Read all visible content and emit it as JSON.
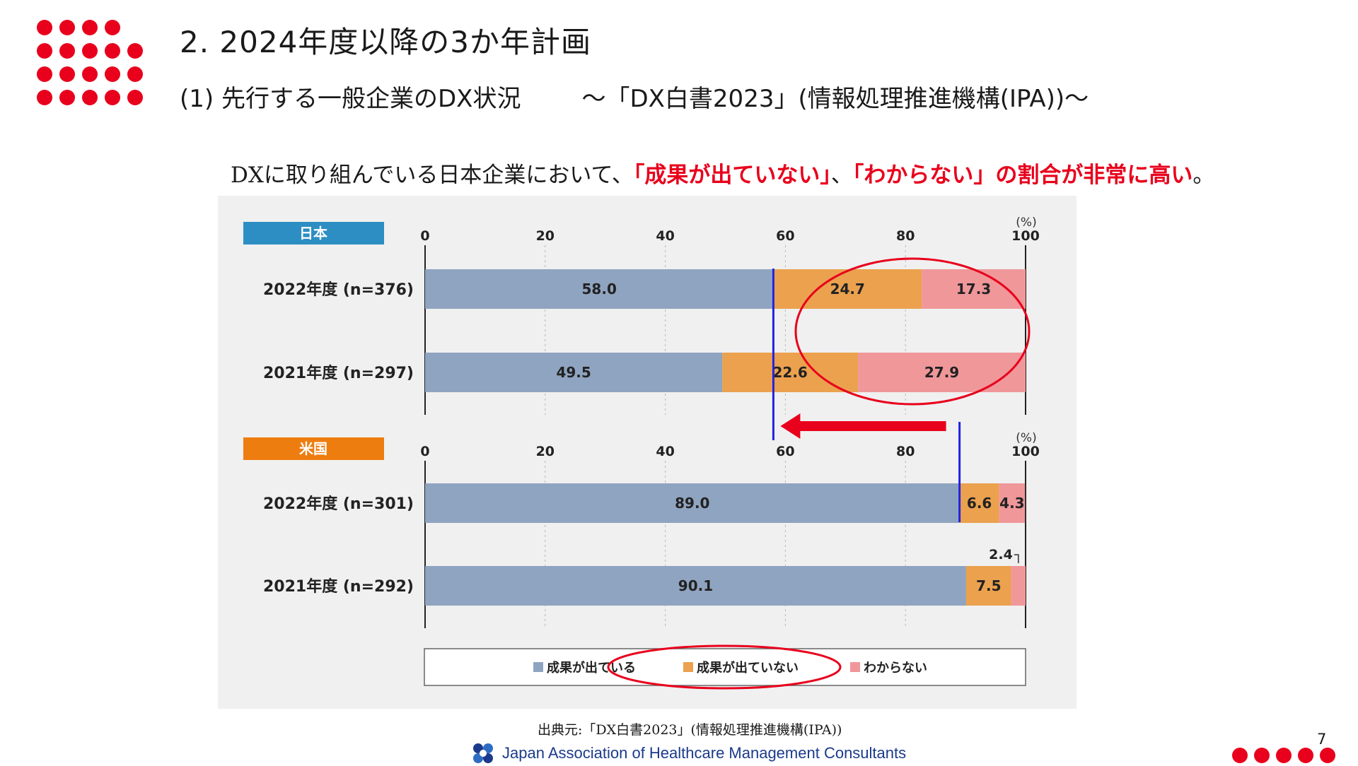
{
  "slide": {
    "title": "2. 2024年度以降の3か年計画",
    "subtitle": "(1) 先行する一般企業のDX状況",
    "subtitle_source": "～「DX白書2023」(情報処理推進機構(IPA))～",
    "lead_prefix": "DXに取り組んでいる日本企業において、",
    "lead_hl1": "「成果が出ていない」",
    "lead_sep": "、",
    "lead_hl2": "「わからない」",
    "lead_hl3": "の割合が非常に高い",
    "lead_end": "。",
    "source": "出典元:「DX白書2023」(情報処理推進機構(IPA))",
    "org": "Japan Association of Healthcare Management Consultants",
    "page_number": "7",
    "accent_color": "#e8001c"
  },
  "chart_data": [
    {
      "type": "bar",
      "orientation": "horizontal-stacked",
      "panel_label": "日本",
      "panel_color": "#2c8ec3",
      "unit": "(%)",
      "xlim": [
        0,
        100
      ],
      "ticks": [
        "0",
        "20",
        "40",
        "60",
        "80",
        "100"
      ],
      "categories": [
        "2022年度 (n=376)",
        "2021年度 (n=297)"
      ],
      "series": [
        {
          "name": "成果が出ている",
          "color": "#8fa4c0",
          "values": [
            58.0,
            49.5
          ],
          "labels": [
            "58.0",
            "49.5"
          ]
        },
        {
          "name": "成果が出ていない",
          "color": "#eba14e",
          "values": [
            24.7,
            22.6
          ],
          "labels": [
            "24.7",
            "22.6"
          ]
        },
        {
          "name": "わからない",
          "color": "#f0979a",
          "values": [
            17.3,
            27.9
          ],
          "labels": [
            "17.3",
            "27.9"
          ]
        }
      ]
    },
    {
      "type": "bar",
      "orientation": "horizontal-stacked",
      "panel_label": "米国",
      "panel_color": "#ee7d0f",
      "unit": "(%)",
      "xlim": [
        0,
        100
      ],
      "ticks": [
        "0",
        "20",
        "40",
        "60",
        "80",
        "100"
      ],
      "categories": [
        "2022年度 (n=301)",
        "2021年度 (n=292)"
      ],
      "series": [
        {
          "name": "成果が出ている",
          "color": "#8fa4c0",
          "values": [
            89.0,
            90.1
          ],
          "labels": [
            "89.0",
            "90.1"
          ]
        },
        {
          "name": "成果が出ていない",
          "color": "#eba14e",
          "values": [
            6.6,
            7.5
          ],
          "labels": [
            "6.6",
            "7.5"
          ]
        },
        {
          "name": "わからない",
          "color": "#f0979a",
          "values": [
            4.3,
            2.4
          ],
          "labels": [
            "4.3",
            "2.4"
          ]
        }
      ]
    }
  ],
  "legend": [
    "成果が出ている",
    "成果が出ていない",
    "わからない"
  ]
}
